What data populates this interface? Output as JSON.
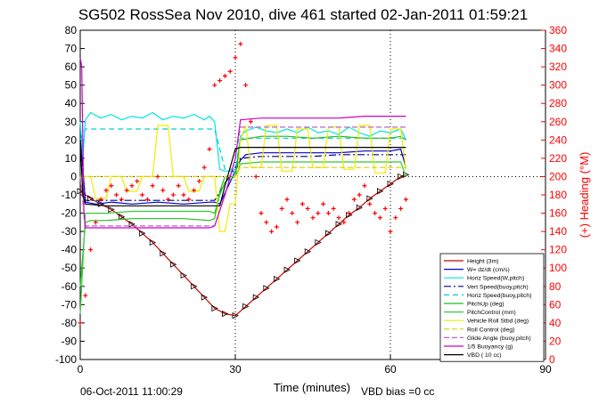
{
  "title": "SG502 RossSea Nov 2010, dive 461 started 02-Jan-2011 01:59:21",
  "footer": {
    "date": "06-Oct-2011 11:00:29",
    "vbd_bias": "VBD bias =0 cc"
  },
  "colors": {
    "height": "#cc0000",
    "w": "#0000cc",
    "horiz_speed": "#00e5e5",
    "vert_speed_buoy": "#000088",
    "horiz_speed_buoy": "#00cccc",
    "pitch_up": "#22bb22",
    "pitch_control": "#33cc33",
    "vehicle_roll": "#eeee00",
    "roll_control": "#ddcc00",
    "glide_angle": "#bb66bb",
    "buoyancy": "#cc00cc",
    "vbd": "#000000",
    "heading": "#ff0000"
  },
  "chart_data": {
    "type": "line",
    "xlabel": "Time (minutes)",
    "ylabel_right": "(+) Heading (°M)",
    "xlim": [
      0,
      90
    ],
    "ylim": [
      -100,
      80
    ],
    "ylim_right": [
      0,
      360
    ],
    "xticks": [
      "0",
      "30",
      "60",
      "90"
    ],
    "yticks": [
      "80",
      "70",
      "60",
      "50",
      "40",
      "30",
      "20",
      "10",
      "0",
      "-10",
      "-20",
      "-30",
      "-40",
      "-50",
      "-60",
      "-70",
      "-80",
      "-90",
      "-100"
    ],
    "yticks_right": [
      "360",
      "340",
      "320",
      "300",
      "280",
      "260",
      "240",
      "220",
      "200",
      "180",
      "160",
      "140",
      "120",
      "100",
      "80",
      "60",
      "40",
      "20",
      "0"
    ],
    "grid": true,
    "legend_position": "bottom-right",
    "series": [
      {
        "name": "Height (3m)",
        "color_key": "height",
        "dash": "",
        "markers": true,
        "x": [
          0,
          2,
          4,
          6,
          8,
          10,
          12,
          14,
          16,
          18,
          20,
          22,
          24,
          26,
          28,
          30,
          32,
          34,
          36,
          38,
          40,
          42,
          44,
          46,
          48,
          50,
          52,
          54,
          56,
          58,
          60,
          62,
          63
        ],
        "y": [
          -8,
          -12,
          -15,
          -18,
          -22,
          -26,
          -31,
          -36,
          -42,
          -48,
          -54,
          -60,
          -66,
          -72,
          -75,
          -76,
          -71,
          -66,
          -61,
          -56,
          -51,
          -46,
          -41,
          -36,
          -31,
          -26,
          -21,
          -17,
          -12,
          -8,
          -4,
          0,
          1
        ]
      },
      {
        "name": "W= dz/dt (cm/s)",
        "color_key": "w",
        "dash": "",
        "x": [
          0,
          0.5,
          1,
          3,
          6,
          10,
          15,
          20,
          25,
          26,
          27,
          28,
          29,
          30,
          31,
          32,
          35,
          40,
          45,
          50,
          55,
          60,
          62,
          63
        ],
        "y": [
          25,
          5,
          -14,
          -15,
          -14,
          -15,
          -14,
          -15,
          -14,
          -14,
          -15,
          -9,
          -3,
          3,
          9,
          12,
          13,
          13,
          13,
          13,
          14,
          14,
          15,
          5
        ]
      },
      {
        "name": "Horiz Speed(W,pitch)",
        "color_key": "horiz_speed",
        "dash": "",
        "x": [
          0,
          0.5,
          1,
          2,
          4,
          6,
          8,
          10,
          12,
          14,
          16,
          18,
          20,
          22,
          24,
          25,
          26,
          27,
          28,
          29,
          30,
          31,
          32,
          34,
          36,
          38,
          40,
          42,
          44,
          46,
          48,
          50,
          52,
          54,
          56,
          58,
          60,
          62,
          63
        ],
        "y": [
          30,
          10,
          31,
          35,
          32,
          34,
          31,
          33,
          32,
          35,
          31,
          33,
          32,
          34,
          31,
          33,
          30,
          4,
          3,
          3,
          2,
          22,
          25,
          27,
          25,
          24,
          26,
          24,
          27,
          24,
          25,
          23,
          27,
          24,
          22,
          25,
          24,
          26,
          20
        ]
      },
      {
        "name": "Vert Speed(buoy,pitch)",
        "color_key": "vert_speed_buoy",
        "dash": "8,3,2,3",
        "x": [
          0,
          1,
          5,
          10,
          15,
          20,
          25,
          26,
          28,
          30,
          31,
          35,
          40,
          45,
          50,
          55,
          60,
          63
        ],
        "y": [
          20,
          -13,
          -13,
          -13,
          -13,
          -13,
          -13,
          -13,
          -4,
          5,
          10,
          11,
          11,
          11,
          12,
          12,
          12,
          12
        ]
      },
      {
        "name": "Horiz Speed(buoy,pitch)",
        "color_key": "horiz_speed_buoy",
        "dash": "6,4",
        "x": [
          0,
          1,
          5,
          10,
          15,
          20,
          25,
          26,
          28,
          30,
          31,
          35,
          40,
          45,
          50,
          55,
          60,
          63
        ],
        "y": [
          20,
          26,
          26,
          26,
          26,
          26,
          26,
          26,
          4,
          4,
          21,
          21,
          21,
          21,
          21,
          21,
          21,
          21
        ]
      },
      {
        "name": "PitchUp (deg)",
        "color_key": "pitch_up",
        "dash": "",
        "x": [
          0,
          1,
          2,
          5,
          10,
          15,
          20,
          25,
          26,
          27,
          28,
          30,
          31,
          35,
          40,
          45,
          50,
          55,
          60,
          62,
          63
        ],
        "y": [
          -60,
          -25,
          -24,
          -24,
          -23,
          -23,
          -23,
          -24,
          -23,
          -8,
          0,
          0,
          20,
          22,
          22,
          21,
          22,
          21,
          21,
          22,
          20
        ]
      },
      {
        "name": "PitchControl (mm)",
        "color_key": "pitch_control",
        "dash": "",
        "x": [
          0,
          1,
          2,
          5,
          10,
          15,
          20,
          25,
          26,
          27,
          28,
          30,
          31,
          35,
          40,
          45,
          50,
          55,
          60,
          62,
          63
        ],
        "y": [
          -75,
          -20,
          -20,
          -20,
          -19,
          -19,
          -19,
          -19,
          -20,
          -10,
          -3,
          0,
          7,
          8,
          8,
          8,
          8,
          8,
          8,
          8,
          0
        ]
      },
      {
        "name": "Vehicle Roll Stbd (deg)",
        "color_key": "vehicle_roll",
        "dash": "",
        "x": [
          0,
          2,
          3,
          5,
          6,
          8,
          9,
          11,
          12,
          14,
          15,
          17,
          18,
          20,
          21,
          23,
          24,
          26,
          27,
          28,
          29,
          30,
          31,
          32,
          33,
          35,
          36,
          38,
          39,
          41,
          42,
          44,
          45,
          47,
          48,
          50,
          51,
          53,
          54,
          56,
          57,
          59,
          60,
          62,
          63
        ],
        "y": [
          0,
          0,
          -12,
          -12,
          0,
          0,
          -8,
          -8,
          0,
          0,
          28,
          28,
          0,
          0,
          -8,
          -8,
          0,
          0,
          -30,
          -30,
          -15,
          -15,
          20,
          28,
          5,
          5,
          28,
          28,
          3,
          3,
          26,
          26,
          5,
          5,
          27,
          27,
          4,
          4,
          28,
          28,
          2,
          2,
          26,
          26,
          4
        ]
      },
      {
        "name": "Roll Control (deg)",
        "color_key": "roll_control",
        "dash": "6,3",
        "x": [
          0,
          1,
          5,
          10,
          15,
          20,
          25,
          26,
          28,
          30,
          31,
          35,
          40,
          45,
          50,
          55,
          60,
          63
        ],
        "y": [
          0,
          0,
          0,
          0,
          0,
          0,
          0,
          0,
          0,
          0,
          5,
          5,
          5,
          5,
          5,
          5,
          5,
          5
        ]
      },
      {
        "name": "Glide Angle (buoy,pitch)",
        "color_key": "glide_angle",
        "dash": "6,3",
        "x": [
          0,
          1,
          5,
          10,
          15,
          20,
          25,
          26,
          28,
          30,
          31,
          35,
          40,
          45,
          50,
          55,
          60,
          63
        ],
        "y": [
          0,
          -27,
          -27,
          -27,
          -27,
          -27,
          -27,
          -27,
          -10,
          10,
          27,
          27,
          27,
          27,
          27,
          27,
          27,
          27
        ]
      },
      {
        "name": "1/5 Buoyancy (g)",
        "color_key": "buoyancy",
        "dash": "",
        "x": [
          0,
          0.3,
          0.7,
          1,
          5,
          10,
          15,
          20,
          25,
          26,
          28,
          30,
          31,
          35,
          40,
          45,
          50,
          55,
          60,
          63
        ],
        "y": [
          65,
          60,
          -20,
          -28,
          -28,
          -28,
          -28,
          -28,
          -28,
          -27,
          -10,
          10,
          31,
          32,
          32,
          32,
          32,
          33,
          33,
          33
        ]
      },
      {
        "name": "VBD ( 10 cc)",
        "color_key": "vbd",
        "dash": "",
        "x": [
          0,
          0.5,
          1,
          5,
          10,
          15,
          20,
          25,
          26,
          27,
          28,
          29,
          30,
          31,
          35,
          40,
          45,
          50,
          55,
          60,
          63
        ],
        "y": [
          20,
          -10,
          -15,
          -16,
          -16,
          -16,
          -16,
          -16,
          -16,
          -16,
          -5,
          5,
          15,
          16,
          16,
          16,
          16,
          16,
          16,
          16,
          16
        ]
      }
    ],
    "heading": {
      "name": "(+) Heading (°M)",
      "color_key": "heading",
      "x": [
        0,
        1,
        2,
        3,
        4,
        5,
        6,
        7,
        8,
        9,
        10,
        11,
        12,
        13,
        14,
        15,
        16,
        17,
        18,
        19,
        20,
        21,
        22,
        23,
        24,
        25,
        26,
        27,
        28,
        29,
        30,
        31,
        32,
        33,
        34,
        35,
        36,
        37,
        38,
        39,
        40,
        41,
        42,
        43,
        44,
        45,
        46,
        47,
        48,
        49,
        50,
        51,
        52,
        53,
        54,
        55,
        56,
        57,
        58,
        59,
        60,
        61,
        62,
        63
      ],
      "y": [
        40,
        70,
        120,
        150,
        175,
        185,
        190,
        180,
        175,
        185,
        190,
        195,
        180,
        175,
        190,
        200,
        185,
        175,
        180,
        190,
        180,
        175,
        185,
        195,
        210,
        230,
        300,
        305,
        310,
        315,
        330,
        345,
        300,
        260,
        200,
        160,
        150,
        140,
        145,
        165,
        175,
        160,
        150,
        170,
        165,
        155,
        160,
        170,
        160,
        165,
        155,
        150,
        160,
        175,
        180,
        190,
        170,
        160,
        155,
        165,
        140,
        155,
        165,
        175
      ]
    }
  }
}
